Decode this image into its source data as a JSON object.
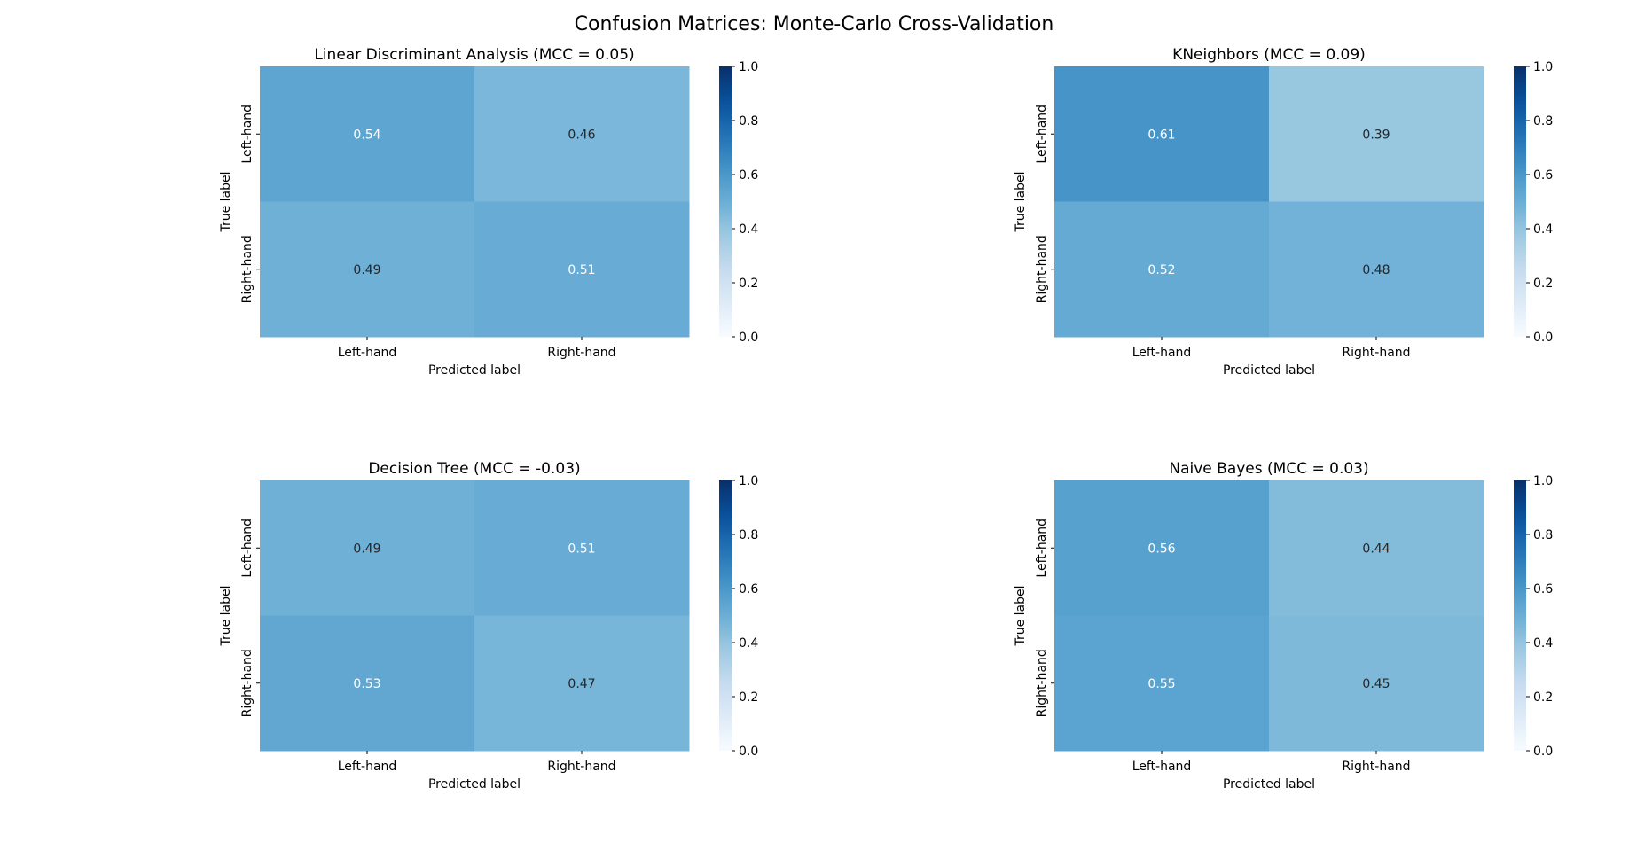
{
  "figure_title": "Confusion Matrices: Monte-Carlo Cross-Validation",
  "colormap": {
    "name": "Blues",
    "low": "#f7fbff",
    "high": "#08306b"
  },
  "chart_data": [
    {
      "type": "heatmap",
      "title": "Linear Discriminant Analysis (MCC = 0.05)",
      "xlabel": "Predicted label",
      "ylabel": "True label",
      "x_categories": [
        "Left-hand",
        "Right-hand"
      ],
      "y_categories": [
        "Left-hand",
        "Right-hand"
      ],
      "values": [
        [
          0.54,
          0.46
        ],
        [
          0.49,
          0.51
        ]
      ],
      "cell_labels": [
        [
          "0.54",
          "0.46"
        ],
        [
          "0.49",
          "0.51"
        ]
      ],
      "colorbar": {
        "range": [
          0.0,
          1.0
        ],
        "ticks": [
          "0.0",
          "0.2",
          "0.4",
          "0.6",
          "0.8",
          "1.0"
        ]
      }
    },
    {
      "type": "heatmap",
      "title": "KNeighbors (MCC = 0.09)",
      "xlabel": "Predicted label",
      "ylabel": "True label",
      "x_categories": [
        "Left-hand",
        "Right-hand"
      ],
      "y_categories": [
        "Left-hand",
        "Right-hand"
      ],
      "values": [
        [
          0.61,
          0.39
        ],
        [
          0.52,
          0.48
        ]
      ],
      "cell_labels": [
        [
          "0.61",
          "0.39"
        ],
        [
          "0.52",
          "0.48"
        ]
      ],
      "colorbar": {
        "range": [
          0.0,
          1.0
        ],
        "ticks": [
          "0.0",
          "0.2",
          "0.4",
          "0.6",
          "0.8",
          "1.0"
        ]
      }
    },
    {
      "type": "heatmap",
      "title": "Decision Tree (MCC = -0.03)",
      "xlabel": "Predicted label",
      "ylabel": "True label",
      "x_categories": [
        "Left-hand",
        "Right-hand"
      ],
      "y_categories": [
        "Left-hand",
        "Right-hand"
      ],
      "values": [
        [
          0.49,
          0.51
        ],
        [
          0.53,
          0.47
        ]
      ],
      "cell_labels": [
        [
          "0.49",
          "0.51"
        ],
        [
          "0.53",
          "0.47"
        ]
      ],
      "colorbar": {
        "range": [
          0.0,
          1.0
        ],
        "ticks": [
          "0.0",
          "0.2",
          "0.4",
          "0.6",
          "0.8",
          "1.0"
        ]
      }
    },
    {
      "type": "heatmap",
      "title": "Naive Bayes (MCC = 0.03)",
      "xlabel": "Predicted label",
      "ylabel": "True label",
      "x_categories": [
        "Left-hand",
        "Right-hand"
      ],
      "y_categories": [
        "Left-hand",
        "Right-hand"
      ],
      "values": [
        [
          0.56,
          0.44
        ],
        [
          0.55,
          0.45
        ]
      ],
      "cell_labels": [
        [
          "0.56",
          "0.44"
        ],
        [
          "0.55",
          "0.45"
        ]
      ],
      "colorbar": {
        "range": [
          0.0,
          1.0
        ],
        "ticks": [
          "0.0",
          "0.2",
          "0.4",
          "0.6",
          "0.8",
          "1.0"
        ]
      }
    }
  ]
}
